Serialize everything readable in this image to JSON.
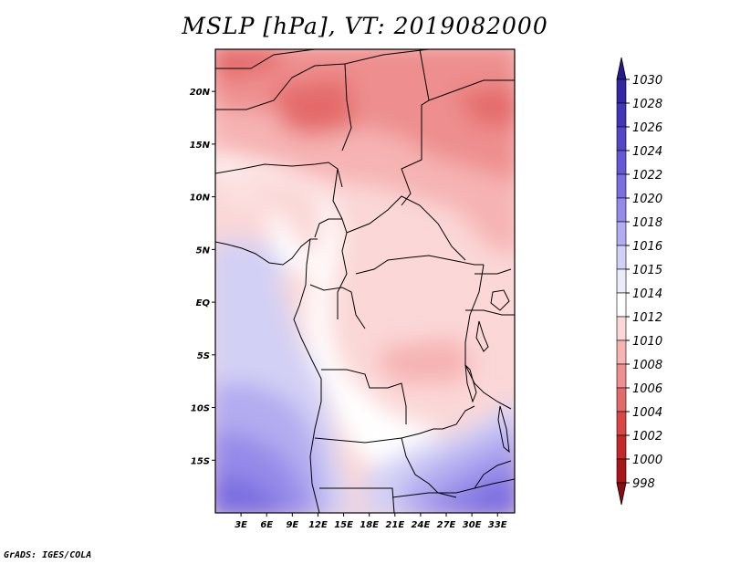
{
  "title": "MSLP [hPa], VT: 2019082000",
  "footer": "GrADS: IGES/COLA",
  "lat_labels": [
    "20N",
    "15N",
    "10N",
    "5N",
    "EQ",
    "5S",
    "10S",
    "15S"
  ],
  "lon_labels": [
    "3E",
    "6E",
    "9E",
    "12E",
    "15E",
    "18E",
    "21E",
    "24E",
    "27E",
    "30E",
    "33E"
  ],
  "colorbar": {
    "levels": [
      "1030",
      "1028",
      "1026",
      "1024",
      "1022",
      "1020",
      "1018",
      "1016",
      "1015",
      "1014",
      "1012",
      "1010",
      "1008",
      "1006",
      "1004",
      "1002",
      "1000",
      "998"
    ],
    "colors": [
      "#271a8c",
      "#3327a4",
      "#4235b8",
      "#5346c7",
      "#6558d4",
      "#7a6ee0",
      "#958ae9",
      "#b3acf0",
      "#d3d0f5",
      "#ecebf9",
      "#ffffff",
      "#fbd7d7",
      "#f6b3b3",
      "#ee8e8e",
      "#e46a6a",
      "#d94646",
      "#c42828",
      "#a8151b",
      "#8a0c14"
    ]
  },
  "map_data": {
    "variable": "MSLP",
    "units": "hPa",
    "valid_time": "2019082000",
    "lon_range": [
      0,
      35
    ],
    "lat_range": [
      -20,
      24
    ]
  }
}
